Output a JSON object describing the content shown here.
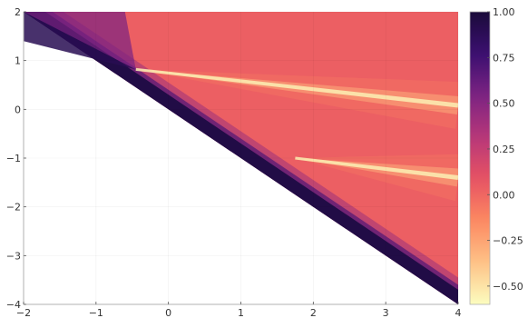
{
  "chart_data": {
    "type": "heatmap",
    "title": "",
    "xlabel": "",
    "ylabel": "",
    "xlim": [
      -2,
      4
    ],
    "ylim": [
      -4,
      2
    ],
    "x_ticks": [
      -2,
      -1,
      0,
      1,
      2,
      3,
      4
    ],
    "y_ticks": [
      -4,
      -3,
      -2,
      -1,
      0,
      1,
      2
    ],
    "x_tick_labels": [
      "−2",
      "−1",
      "0",
      "1",
      "2",
      "3",
      "4"
    ],
    "y_tick_labels": [
      "−4",
      "−3",
      "−2",
      "−1",
      "0",
      "1",
      "2"
    ],
    "grid": true,
    "colorbar": {
      "range": [
        -0.6,
        1.0
      ],
      "ticks": [
        1.0,
        0.75,
        0.5,
        0.25,
        0.0,
        -0.25,
        -0.5
      ],
      "tick_labels": [
        "1.00",
        "0.75",
        "0.50",
        "0.25",
        "0.00",
        "−0.25",
        "−0.50"
      ],
      "colormap": "magma (reversed)",
      "colors": [
        "#fcfdbf",
        "#fec287",
        "#fc8961",
        "#e75263",
        "#b73779",
        "#7c2382",
        "#3b0f70",
        "#1a0b3a"
      ]
    },
    "domain_boundary": "y = -x",
    "features": [
      {
        "description": "bright cusp ray",
        "start": [
          -0.45,
          0.82
        ],
        "end": [
          4,
          0.08
        ]
      },
      {
        "description": "bright ray",
        "start": [
          1.75,
          -1.0
        ],
        "end": [
          4,
          -1.4
        ]
      }
    ],
    "background_value": 0.03
  }
}
